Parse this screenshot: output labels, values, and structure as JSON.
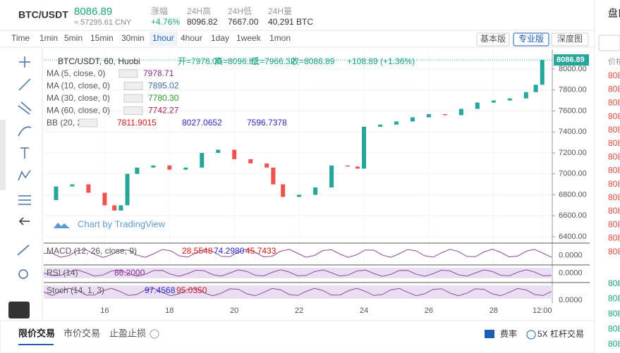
{
  "header": {
    "pair": "BTC/USDT",
    "price": "8086.89",
    "cny": "≈ 57295.61 CNY",
    "stats": [
      {
        "label": "涨幅",
        "value": "+4.76%"
      },
      {
        "label": "24H高",
        "value": "8096.82"
      },
      {
        "label": "24H低",
        "value": "7667.00"
      },
      {
        "label": "24H量",
        "value": "40,291 BTC"
      }
    ]
  },
  "toolbar": {
    "intervals": [
      "Time",
      "1min",
      "5min",
      "15min",
      "30min",
      "1hour",
      "4hour",
      "1day",
      "1week",
      "1mon"
    ],
    "views": [
      "基本版",
      "专业版",
      "深度图"
    ]
  },
  "legend": {
    "symbol": "BTC/USDT, 60, Huobi",
    "ohlc": [
      "开=7978.00",
      "高=8096.82",
      "低=7966.32",
      "收=8086.89"
    ],
    "change": "+108.89 (+1.36%)",
    "indicators": [
      {
        "name": "MA (5, close, 0)",
        "values": [
          "7978.71"
        ],
        "colors": [
          "#8e2a8e"
        ]
      },
      {
        "name": "MA (10, close, 0)",
        "values": [
          "7895.02"
        ],
        "colors": [
          "#3a6fb0"
        ]
      },
      {
        "name": "MA (30, close, 0)",
        "values": [
          "7780.30"
        ],
        "colors": [
          "#2a9a2a"
        ]
      },
      {
        "name": "MA (60, close, 0)",
        "values": [
          "7742.27"
        ],
        "colors": [
          "#a02050"
        ]
      },
      {
        "name": "BB (20, 2)",
        "values": [
          "7811.9015",
          "8027.0652",
          "7596.7378"
        ],
        "colors": [
          "#d01818",
          "#2828c8",
          "#2828c8"
        ]
      }
    ]
  },
  "watermark": "Chart by TradingView",
  "chart_data": {
    "type": "candlestick",
    "x": [
      14.2,
      14.5,
      15.0,
      15.5,
      16.0,
      16.3,
      16.5,
      16.7,
      17.0,
      17.5,
      18.0,
      18.5,
      19.0,
      19.5,
      20.0,
      20.5,
      21.0,
      21.2,
      21.5,
      22.0,
      22.5,
      23.0,
      23.5,
      23.8,
      24.0,
      24.5,
      25.0,
      25.5,
      26.0,
      26.5,
      27.0,
      27.5,
      28.0,
      28.5,
      29.0,
      29.3,
      29.5
    ],
    "values": [
      6750,
      6880,
      6900,
      6820,
      6700,
      6650,
      6700,
      7000,
      7060,
      7080,
      7040,
      7060,
      7200,
      7230,
      7140,
      7100,
      7060,
      6900,
      6780,
      6800,
      6870,
      7080,
      7070,
      7050,
      7450,
      7470,
      7500,
      7540,
      7570,
      7560,
      7620,
      7680,
      7700,
      7720,
      7780,
      7850,
      8086.89
    ],
    "up_color": "#26a69a",
    "down_color": "#ef5350",
    "last_price_label": "8086.89",
    "xlim": [
      14.12,
      29.81
    ],
    "ylim": [
      6353,
      8121
    ],
    "xticks": [
      16,
      18,
      20,
      22,
      24,
      26,
      28,
      {
        "value": 29.5,
        "label": "12:00"
      }
    ],
    "yticks": [
      {
        "value": 6400,
        "label": "6400.00"
      },
      {
        "value": 6600,
        "label": "6600.00"
      },
      {
        "value": 6800,
        "label": "6800.00"
      },
      {
        "value": 7000,
        "label": "7000.00"
      },
      {
        "value": 7200,
        "label": "7200.00"
      },
      {
        "value": 7400,
        "label": "7400.00"
      },
      {
        "value": 7600,
        "label": "7600.00"
      },
      {
        "value": 7800,
        "label": "7800.00"
      },
      {
        "value": 8000,
        "label": "8000.00"
      }
    ]
  },
  "panes": [
    {
      "name": "MACD (12, 26, close, 9)",
      "values": [
        "28.5548",
        "74.2980",
        "45.7433"
      ],
      "colors": [
        "#d01818",
        "#2828c8",
        "#d01818"
      ],
      "tick": "0.0000"
    },
    {
      "name": "RSI (14)",
      "values": [
        "86.2000"
      ],
      "colors": [
        "#8e2a8e"
      ],
      "tick": "0.0000"
    },
    {
      "name": "Stoch (14, 1, 3)",
      "values": [
        "97.4568",
        "95.0350"
      ],
      "colors": [
        "#2828c8",
        "#d01818"
      ],
      "tick": "0.0000"
    }
  ],
  "bottom": {
    "tabs": [
      "限价交易",
      "市价交易",
      "止盈止损"
    ],
    "fee": "费率",
    "leverage": "5X 杠杆交易"
  },
  "side": {
    "title": "盘口",
    "header": "价格",
    "asks": [
      "808",
      "808",
      "808",
      "808",
      "808",
      "808",
      "808",
      "808",
      "808",
      "808",
      "808",
      "808",
      "808",
      "808"
    ],
    "bids": [
      "808",
      "808",
      "808",
      "808",
      "808"
    ]
  }
}
